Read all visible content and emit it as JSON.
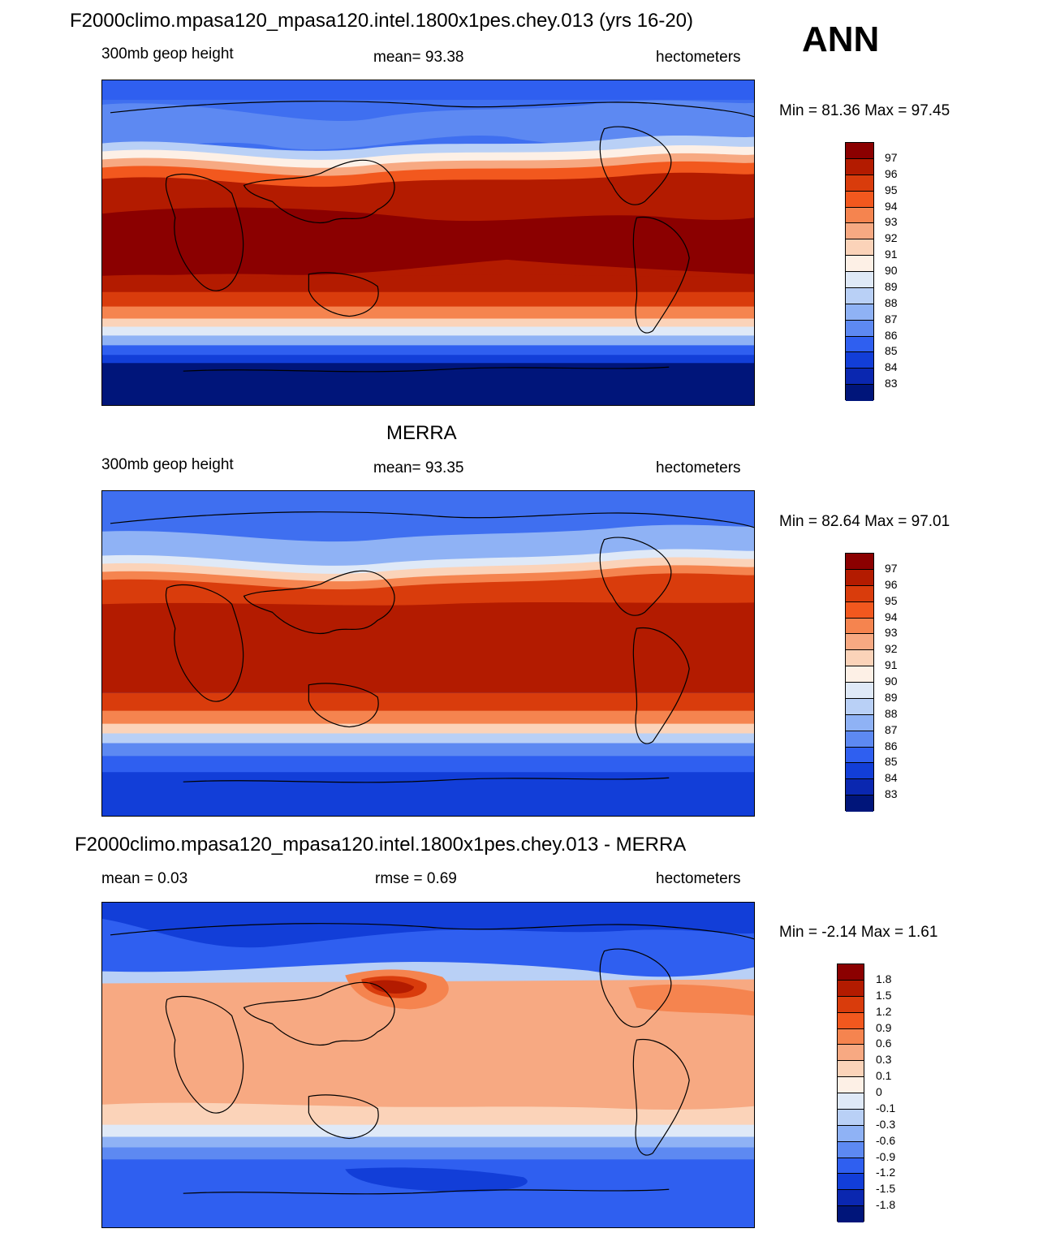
{
  "season": "ANN",
  "panels": [
    {
      "id": "model",
      "title": "F2000climo.mpasa120_mpasa120.intel.1800x1pes.chey.013 (yrs 16-20)",
      "left_label": "300mb geop height",
      "center_label": "mean=  93.38",
      "right_label": "hectometers",
      "minmax": "Min =  81.36 Max =  97.45",
      "colorbar": {
        "labels": [
          "97",
          "96",
          "95",
          "94",
          "93",
          "92",
          "91",
          "90",
          "89",
          "88",
          "87",
          "86",
          "85",
          "84",
          "83"
        ],
        "colors": [
          "#8b0000",
          "#b31b00",
          "#d93c0c",
          "#f2581e",
          "#f5844f",
          "#f7a982",
          "#fbd3b9",
          "#fdf0e6",
          "#dfe9f7",
          "#b9d0f6",
          "#8fb2f5",
          "#5d89f2",
          "#2f5ff0",
          "#123ed8",
          "#0a27b0",
          "#00157a"
        ]
      }
    },
    {
      "id": "obs",
      "title": "MERRA",
      "left_label": "300mb geop height",
      "center_label": "mean=  93.35",
      "right_label": "hectometers",
      "minmax": "Min =  82.64 Max =  97.01",
      "colorbar": {
        "labels": [
          "97",
          "96",
          "95",
          "94",
          "93",
          "92",
          "91",
          "90",
          "89",
          "88",
          "87",
          "86",
          "85",
          "84",
          "83"
        ],
        "colors": [
          "#8b0000",
          "#b31b00",
          "#d93c0c",
          "#f2581e",
          "#f5844f",
          "#f7a982",
          "#fbd3b9",
          "#fdf0e6",
          "#dfe9f7",
          "#b9d0f6",
          "#8fb2f5",
          "#5d89f2",
          "#2f5ff0",
          "#123ed8",
          "#0a27b0",
          "#00157a"
        ]
      }
    },
    {
      "id": "diff",
      "title": "F2000climo.mpasa120_mpasa120.intel.1800x1pes.chey.013 - MERRA",
      "left_label": "mean =   0.03",
      "center_label": "rmse =   0.69",
      "right_label": "hectometers",
      "minmax": "Min =  -2.14 Max =   1.61",
      "colorbar": {
        "labels": [
          "1.8",
          "1.5",
          "1.2",
          "0.9",
          "0.6",
          "0.3",
          "0.1",
          "0",
          "-0.1",
          "-0.3",
          "-0.6",
          "-0.9",
          "-1.2",
          "-1.5",
          "-1.8"
        ],
        "colors": [
          "#8b0000",
          "#b31b00",
          "#d93c0c",
          "#f2581e",
          "#f5844f",
          "#f7a982",
          "#fbd3b9",
          "#fdf0e6",
          "#dfe9f7",
          "#b9d0f6",
          "#8fb2f5",
          "#5d89f2",
          "#2f5ff0",
          "#123ed8",
          "#0a27b0",
          "#00157a"
        ]
      }
    }
  ]
}
